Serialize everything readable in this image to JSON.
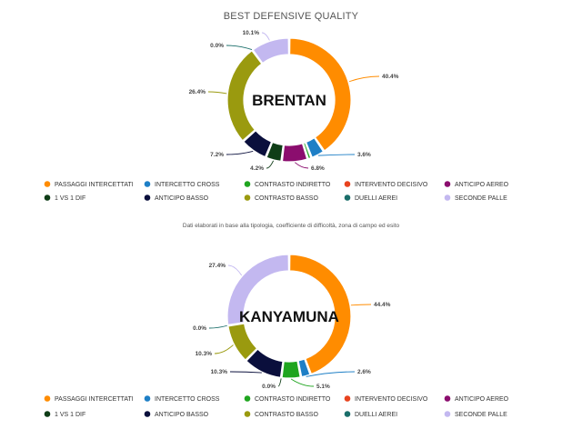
{
  "page": {
    "title": "BEST DEFENSIVE QUALITY",
    "note": "Dati elaborati in base alla tipologia, coefficiente di difficoltà, zona di campo ed esito"
  },
  "legend": [
    {
      "label": "PASSAGGI INTERCETTATI",
      "color": "#ff8c00"
    },
    {
      "label": "INTERCETTO CROSS",
      "color": "#1e7fc6"
    },
    {
      "label": "CONTRASTO INDIRETTO",
      "color": "#1fa51f"
    },
    {
      "label": "INTERVENTO DECISIVO",
      "color": "#e8431e"
    },
    {
      "label": "ANTICIPO AEREO",
      "color": "#8b0d6e"
    },
    {
      "label": "1 VS 1 DIF",
      "color": "#0f3d17"
    },
    {
      "label": "ANTICIPO BASSO",
      "color": "#0a0f3c"
    },
    {
      "label": "CONTRASTO BASSO",
      "color": "#9a9a0f"
    },
    {
      "label": "DUELLI AEREI",
      "color": "#1a6e6a"
    },
    {
      "label": "SECONDE PALLE",
      "color": "#c3b8f0"
    }
  ],
  "chart_data": [
    {
      "type": "pie",
      "title": "BEST DEFENSIVE QUALITY",
      "center_label": "BRENTAN",
      "categories": [
        "PASSAGGI INTERCETTATI",
        "INTERCETTO CROSS",
        "CONTRASTO INDIRETTO",
        "INTERVENTO DECISIVO",
        "ANTICIPO AEREO",
        "1 VS 1 DIF",
        "ANTICIPO BASSO",
        "CONTRASTO BASSO",
        "DUELLI AEREI",
        "SECONDE PALLE"
      ],
      "values": [
        40.4,
        3.6,
        1.0,
        0.0,
        6.8,
        4.2,
        7.2,
        26.4,
        0.0,
        10.1
      ],
      "labels": [
        "40.4%",
        "3.6%",
        "",
        "",
        "6.8%",
        "4.2%",
        "7.2%",
        "26.4%",
        "0.0%",
        "10.1%"
      ]
    },
    {
      "type": "pie",
      "center_label": "KANYAMUNA",
      "categories": [
        "PASSAGGI INTERCETTATI",
        "INTERCETTO CROSS",
        "CONTRASTO INDIRETTO",
        "INTERVENTO DECISIVO",
        "ANTICIPO AEREO",
        "1 VS 1 DIF",
        "ANTICIPO BASSO",
        "CONTRASTO BASSO",
        "DUELLI AEREI",
        "SECONDE PALLE"
      ],
      "values": [
        44.4,
        2.6,
        5.1,
        0.0,
        0.0,
        0.0,
        10.3,
        10.3,
        0.0,
        27.4
      ],
      "labels": [
        "44.4%",
        "2.6%",
        "5.1%",
        "",
        "",
        "0.0%",
        "10.3%",
        "10.3%",
        "0.0%",
        "27.4%"
      ]
    }
  ]
}
